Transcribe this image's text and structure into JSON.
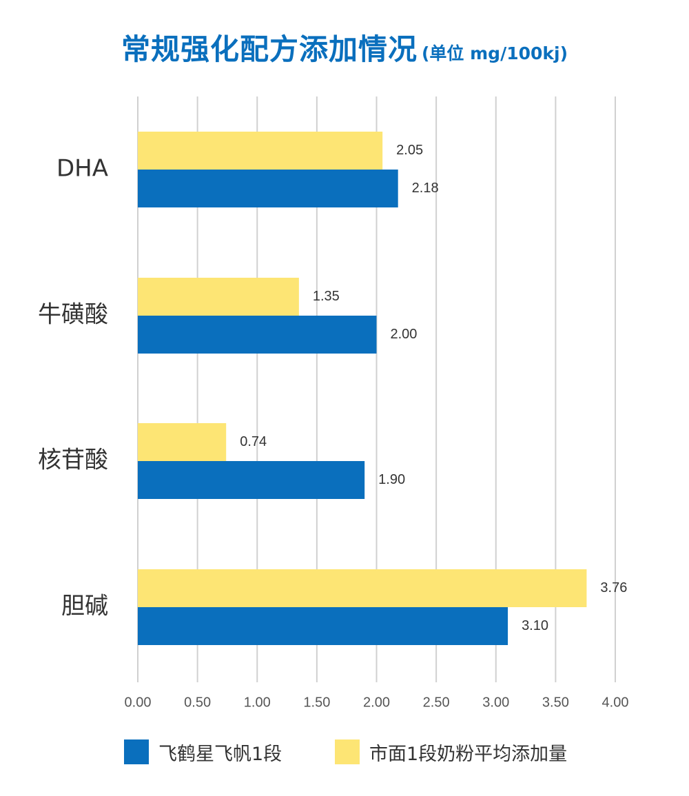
{
  "colors": {
    "title": "#0a6fbd",
    "series_primary": "#0a6fbd",
    "series_secondary": "#fde574",
    "grid": "#d0d0d0",
    "text": "#333333",
    "tick": "#555555"
  },
  "chart_data": {
    "type": "bar",
    "orientation": "horizontal",
    "title": "常规强化配方添加情况",
    "unit_label": "(单位 mg/100kj)",
    "categories": [
      "DHA",
      "牛磺酸",
      "核苷酸",
      "胆碱"
    ],
    "series": [
      {
        "name": "飞鹤星飞帆1段",
        "values": [
          2.18,
          2.0,
          1.9,
          3.1
        ],
        "value_labels": [
          "2.18",
          "2.00",
          "1.90",
          "3.10"
        ]
      },
      {
        "name": "市面1段奶粉平均添加量",
        "values": [
          2.05,
          1.35,
          0.74,
          3.76
        ],
        "value_labels": [
          "2.05",
          "1.35",
          "0.74",
          "3.76"
        ]
      }
    ],
    "xlim": [
      0,
      4
    ],
    "x_ticks": [
      "0.00",
      "0.50",
      "1.00",
      "1.50",
      "2.00",
      "2.50",
      "3.00",
      "3.50",
      "4.00"
    ],
    "x_tick_values": [
      0,
      0.5,
      1,
      1.5,
      2,
      2.5,
      3,
      3.5,
      4
    ],
    "grid": true,
    "legend_position": "bottom"
  }
}
